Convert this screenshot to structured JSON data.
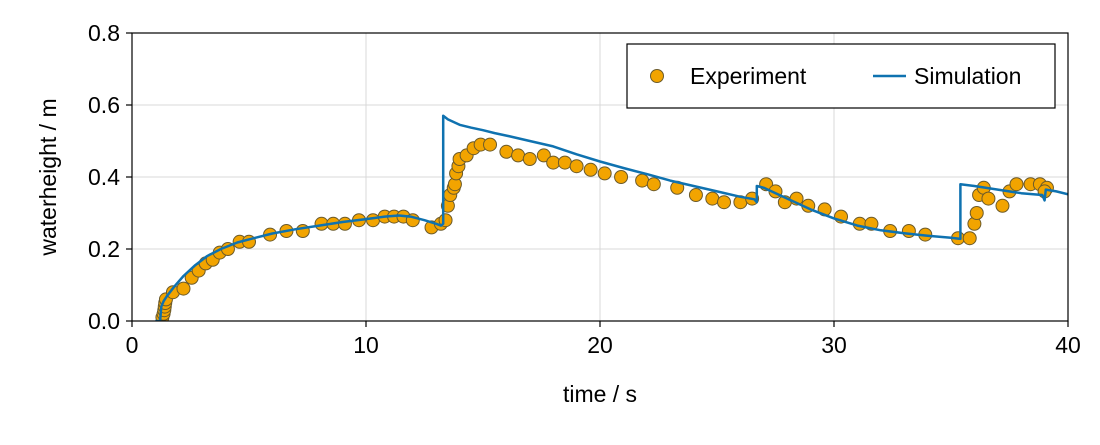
{
  "chart_data": {
    "type": "scatter",
    "xlabel": "time / s",
    "ylabel": "waterheight / m",
    "xlim": [
      0,
      40
    ],
    "ylim": [
      0,
      0.8
    ],
    "xticks": [
      0,
      10,
      20,
      30,
      40
    ],
    "yticks": [
      0.0,
      0.2,
      0.4,
      0.6,
      0.8
    ],
    "xtick_labels": [
      "0",
      "10",
      "20",
      "30",
      "40"
    ],
    "ytick_labels": [
      "0.0",
      "0.2",
      "0.4",
      "0.6",
      "0.8"
    ],
    "grid": true,
    "legend": {
      "placement": "top-right",
      "entries": [
        {
          "label": "Experiment",
          "marker": "circle",
          "color": "#f2a400"
        },
        {
          "label": "Simulation",
          "marker": "line",
          "color": "#0f72b0"
        }
      ]
    },
    "series": [
      {
        "name": "Experiment",
        "kind": "scatter",
        "color": "#f2a400",
        "edge_color": "#6b5a2a",
        "points": [
          [
            1.3,
            0.01
          ],
          [
            1.35,
            0.02
          ],
          [
            1.38,
            0.03
          ],
          [
            1.4,
            0.04
          ],
          [
            1.42,
            0.05
          ],
          [
            1.45,
            0.06
          ],
          [
            1.75,
            0.08
          ],
          [
            2.2,
            0.09
          ],
          [
            2.55,
            0.12
          ],
          [
            2.85,
            0.14
          ],
          [
            3.15,
            0.16
          ],
          [
            3.45,
            0.17
          ],
          [
            3.75,
            0.19
          ],
          [
            4.1,
            0.2
          ],
          [
            4.6,
            0.22
          ],
          [
            5.0,
            0.22
          ],
          [
            5.9,
            0.24
          ],
          [
            6.6,
            0.25
          ],
          [
            7.3,
            0.25
          ],
          [
            8.1,
            0.27
          ],
          [
            8.6,
            0.27
          ],
          [
            9.1,
            0.27
          ],
          [
            9.7,
            0.28
          ],
          [
            10.3,
            0.28
          ],
          [
            10.8,
            0.29
          ],
          [
            11.2,
            0.29
          ],
          [
            11.6,
            0.29
          ],
          [
            12.0,
            0.28
          ],
          [
            12.8,
            0.26
          ],
          [
            13.2,
            0.27
          ],
          [
            13.4,
            0.28
          ],
          [
            13.5,
            0.32
          ],
          [
            13.6,
            0.35
          ],
          [
            13.75,
            0.37
          ],
          [
            13.8,
            0.38
          ],
          [
            13.85,
            0.41
          ],
          [
            13.95,
            0.43
          ],
          [
            14.0,
            0.45
          ],
          [
            14.3,
            0.46
          ],
          [
            14.6,
            0.48
          ],
          [
            14.9,
            0.49
          ],
          [
            15.3,
            0.49
          ],
          [
            16.0,
            0.47
          ],
          [
            16.5,
            0.46
          ],
          [
            17.0,
            0.45
          ],
          [
            17.6,
            0.46
          ],
          [
            18.0,
            0.44
          ],
          [
            18.5,
            0.44
          ],
          [
            19.0,
            0.43
          ],
          [
            19.6,
            0.42
          ],
          [
            20.2,
            0.41
          ],
          [
            20.9,
            0.4
          ],
          [
            21.8,
            0.39
          ],
          [
            22.3,
            0.38
          ],
          [
            23.3,
            0.37
          ],
          [
            24.1,
            0.35
          ],
          [
            24.8,
            0.34
          ],
          [
            25.3,
            0.33
          ],
          [
            26.0,
            0.33
          ],
          [
            26.5,
            0.34
          ],
          [
            27.1,
            0.38
          ],
          [
            27.5,
            0.36
          ],
          [
            27.9,
            0.33
          ],
          [
            28.4,
            0.34
          ],
          [
            28.9,
            0.32
          ],
          [
            29.6,
            0.31
          ],
          [
            30.3,
            0.29
          ],
          [
            31.1,
            0.27
          ],
          [
            31.6,
            0.27
          ],
          [
            32.4,
            0.25
          ],
          [
            33.2,
            0.25
          ],
          [
            33.9,
            0.24
          ],
          [
            35.3,
            0.23
          ],
          [
            35.8,
            0.23
          ],
          [
            36.0,
            0.27
          ],
          [
            36.1,
            0.3
          ],
          [
            36.2,
            0.35
          ],
          [
            36.4,
            0.37
          ],
          [
            36.6,
            0.34
          ],
          [
            37.2,
            0.32
          ],
          [
            37.5,
            0.36
          ],
          [
            37.8,
            0.38
          ],
          [
            38.4,
            0.38
          ],
          [
            38.8,
            0.38
          ],
          [
            39.1,
            0.37
          ],
          [
            39.0,
            0.36
          ]
        ]
      },
      {
        "name": "Simulation",
        "kind": "line",
        "color": "#0f72b0",
        "points": [
          [
            1.0,
            0.0
          ],
          [
            1.2,
            0.0
          ],
          [
            1.25,
            0.04
          ],
          [
            1.35,
            0.055
          ],
          [
            1.5,
            0.07
          ],
          [
            1.8,
            0.095
          ],
          [
            2.2,
            0.125
          ],
          [
            2.7,
            0.155
          ],
          [
            3.2,
            0.18
          ],
          [
            3.8,
            0.2
          ],
          [
            4.5,
            0.218
          ],
          [
            5.2,
            0.23
          ],
          [
            6.0,
            0.243
          ],
          [
            7.0,
            0.255
          ],
          [
            8.0,
            0.265
          ],
          [
            9.0,
            0.275
          ],
          [
            10.0,
            0.283
          ],
          [
            10.8,
            0.29
          ],
          [
            11.4,
            0.293
          ],
          [
            11.9,
            0.29
          ],
          [
            12.5,
            0.28
          ],
          [
            13.0,
            0.27
          ],
          [
            13.2,
            0.265
          ],
          [
            13.3,
            0.27
          ],
          [
            13.3,
            0.57
          ],
          [
            13.5,
            0.56
          ],
          [
            14.0,
            0.545
          ],
          [
            14.5,
            0.537
          ],
          [
            15.0,
            0.53
          ],
          [
            15.5,
            0.522
          ],
          [
            16.0,
            0.515
          ],
          [
            17.0,
            0.5
          ],
          [
            18.0,
            0.485
          ],
          [
            19.0,
            0.463
          ],
          [
            20.0,
            0.443
          ],
          [
            21.0,
            0.425
          ],
          [
            22.0,
            0.408
          ],
          [
            23.0,
            0.39
          ],
          [
            24.0,
            0.375
          ],
          [
            25.0,
            0.36
          ],
          [
            26.0,
            0.345
          ],
          [
            26.6,
            0.338
          ],
          [
            26.7,
            0.33
          ],
          [
            26.7,
            0.375
          ],
          [
            27.0,
            0.37
          ],
          [
            28.0,
            0.34
          ],
          [
            29.0,
            0.31
          ],
          [
            30.0,
            0.285
          ],
          [
            31.0,
            0.265
          ],
          [
            32.0,
            0.252
          ],
          [
            33.0,
            0.244
          ],
          [
            34.0,
            0.237
          ],
          [
            35.0,
            0.231
          ],
          [
            35.4,
            0.228
          ],
          [
            35.4,
            0.38
          ],
          [
            36.0,
            0.375
          ],
          [
            37.0,
            0.365
          ],
          [
            38.0,
            0.355
          ],
          [
            38.9,
            0.35
          ],
          [
            39.0,
            0.335
          ],
          [
            39.05,
            0.365
          ],
          [
            39.5,
            0.36
          ],
          [
            40.0,
            0.352
          ]
        ]
      }
    ]
  }
}
